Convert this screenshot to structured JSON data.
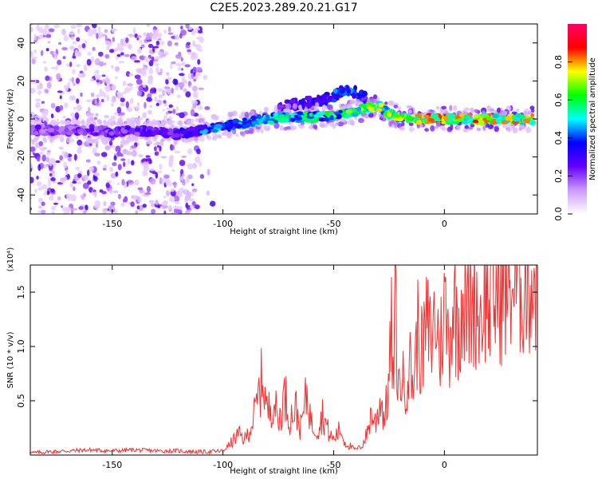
{
  "title": "C2E5.2023.289.20.21.G17",
  "chart_data": [
    {
      "type": "heatmap",
      "xlabel": "Height of straight line (km)",
      "ylabel": "Frequency (Hz)",
      "xlim": [
        -187,
        42
      ],
      "ylim": [
        -50,
        50
      ],
      "x_ticks": [
        -150,
        -100,
        -50,
        0
      ],
      "y_ticks": [
        -40,
        -20,
        0,
        20,
        40
      ],
      "colorbar": {
        "label": "Normalized spectral amplitude",
        "range": [
          0,
          1
        ],
        "ticks": [
          0.0,
          0.2,
          0.4,
          0.6,
          0.8
        ],
        "colors": [
          "#ffffff",
          "#cc99ff",
          "#6600ff",
          "#0000ff",
          "#00ffff",
          "#00ff00",
          "#ffff00",
          "#ff0000",
          "#ff0066"
        ]
      },
      "ridge": {
        "x": [
          -187,
          -160,
          -150,
          -140,
          -130,
          -120,
          -110,
          -100,
          -90,
          -80,
          -70,
          -60,
          -50,
          -45,
          -40,
          -35,
          -30,
          -25,
          -20,
          -10,
          0,
          10,
          20,
          30,
          40
        ],
        "frequency": [
          -6,
          -6,
          -7,
          -6,
          -7,
          -8,
          -6,
          -4,
          -2,
          0,
          1,
          1,
          2,
          3,
          4,
          6,
          7,
          3,
          1,
          0,
          0,
          0,
          0,
          0,
          0
        ],
        "amplitude": [
          0.25,
          0.25,
          0.3,
          0.3,
          0.3,
          0.35,
          0.45,
          0.5,
          0.55,
          0.6,
          0.6,
          0.6,
          0.65,
          0.7,
          0.75,
          0.8,
          0.75,
          0.7,
          0.75,
          0.85,
          0.85,
          0.85,
          0.85,
          0.85,
          0.85
        ]
      },
      "upper_branch": {
        "x": [
          -75,
          -65,
          -55,
          -50,
          -45,
          -40,
          -35
        ],
        "frequency": [
          6,
          8,
          10,
          12,
          15,
          14,
          10
        ],
        "amplitude": [
          0.3,
          0.35,
          0.4,
          0.45,
          0.5,
          0.45,
          0.35
        ]
      },
      "noise_region_x": [
        -187,
        -110
      ]
    },
    {
      "type": "line",
      "xlabel": "Height of straight line (km)",
      "ylabel": "SNR (10 * v/v)",
      "y_multiplier": "(x10⁴)",
      "xlim": [
        -187,
        42
      ],
      "ylim": [
        0,
        1.75
      ],
      "x_ticks": [
        -150,
        -100,
        -50,
        0
      ],
      "y_ticks": [
        0.5,
        1.0,
        1.5
      ],
      "color": "#ee3333",
      "series": [
        {
          "x": [
            -187,
            -180,
            -170,
            -160,
            -150,
            -140,
            -130,
            -120,
            -110,
            -100,
            -97,
            -93,
            -90,
            -87,
            -85,
            -82,
            -80,
            -77,
            -75,
            -72,
            -70,
            -67,
            -65,
            -62,
            -60,
            -57,
            -55,
            -52,
            -50,
            -47,
            -45,
            -42,
            -40,
            -37,
            -35,
            -33,
            -31,
            -29,
            -27,
            -25,
            -24,
            -23,
            -22,
            -21,
            -20,
            -18,
            -16,
            -14,
            -12,
            -10,
            -8,
            -6,
            -4,
            -2,
            0,
            2,
            4,
            6,
            8,
            10,
            12,
            14,
            16,
            18,
            20,
            22,
            24,
            26,
            28,
            30,
            32,
            34,
            36,
            38,
            40,
            42
          ],
          "y": [
            0.02,
            0.03,
            0.04,
            0.05,
            0.04,
            0.05,
            0.04,
            0.04,
            0.03,
            0.04,
            0.1,
            0.2,
            0.15,
            0.3,
            0.45,
            0.78,
            0.4,
            0.55,
            0.3,
            0.6,
            0.35,
            0.45,
            0.25,
            0.6,
            0.3,
            0.25,
            0.4,
            0.2,
            0.15,
            0.25,
            0.12,
            0.08,
            0.05,
            0.1,
            0.2,
            0.4,
            0.3,
            0.55,
            0.35,
            0.7,
            1.25,
            0.6,
            1.65,
            0.55,
            0.8,
            0.65,
            0.9,
            0.7,
            1.2,
            0.95,
            1.25,
            1.1,
            1.35,
            1.0,
            1.45,
            1.1,
            1.5,
            1.25,
            1.55,
            1.35,
            1.45,
            1.55,
            1.3,
            1.6,
            1.45,
            1.5,
            1.55,
            1.6,
            1.58,
            1.65,
            1.62,
            1.68,
            1.65,
            1.7,
            1.72,
            1.7
          ]
        }
      ]
    }
  ]
}
